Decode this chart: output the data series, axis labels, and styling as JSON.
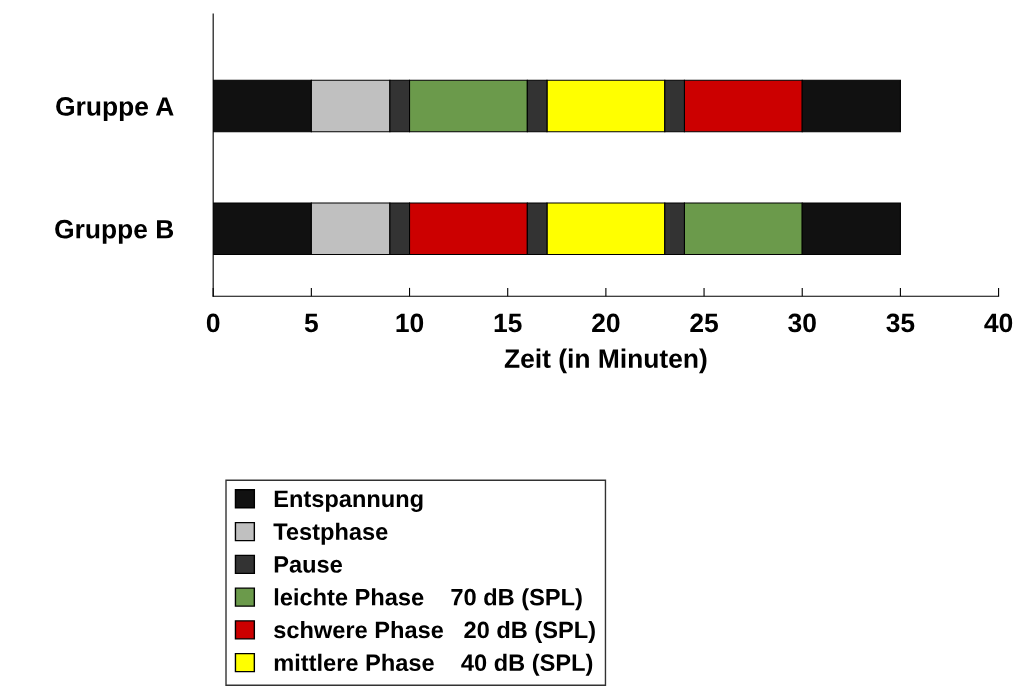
{
  "chart_data": {
    "type": "bar",
    "orientation": "horizontal",
    "categories": [
      "Gruppe A",
      "Gruppe B"
    ],
    "xlabel": "Zeit (in Minuten)",
    "xlim": [
      0,
      40
    ],
    "xticks": [
      0,
      5,
      10,
      15,
      20,
      25,
      30,
      35,
      40
    ],
    "grid": false,
    "legend": "bottom",
    "series": [
      {
        "name": "Entspannung",
        "color": "#111111",
        "base": [
          0,
          0
        ],
        "values": [
          5,
          5
        ]
      },
      {
        "name": "Testphase",
        "color": "#c0c0c0",
        "base": [
          5,
          5
        ],
        "values": [
          4,
          4
        ]
      },
      {
        "name": "Pause",
        "color": "#333333",
        "base": [
          9,
          9
        ],
        "values": [
          1,
          1
        ]
      },
      {
        "name": "leichte Phase    70 dB (SPL)",
        "color": "#6b9a4b",
        "base": [
          10,
          24
        ],
        "values": [
          6,
          6
        ]
      },
      {
        "name": "schwere Phase   20 dB (SPL)",
        "color": "#cc0000",
        "base": [
          24,
          10
        ],
        "values": [
          6,
          6
        ]
      },
      {
        "name": "mittlere Phase    40 dB (SPL)",
        "color": "#ffff00",
        "base": [
          17,
          17
        ],
        "values": [
          6,
          6
        ]
      },
      {
        "color": "#333333",
        "base": [
          16,
          16
        ],
        "values": [
          1,
          1
        ]
      },
      {
        "color": "#333333",
        "base": [
          23,
          23
        ],
        "values": [
          1,
          1
        ]
      },
      {
        "color": "#111111",
        "base": [
          30,
          30
        ],
        "values": [
          5,
          5
        ]
      }
    ]
  }
}
